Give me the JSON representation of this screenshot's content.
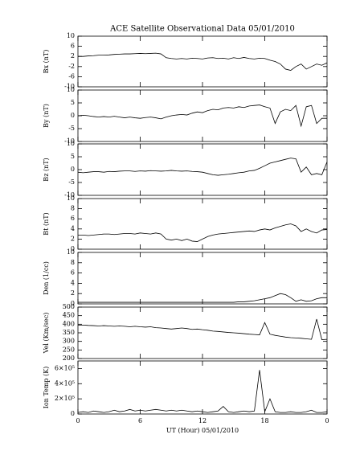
{
  "chart_data": [
    {
      "type": "line",
      "title": "ACE Satellite Observational Data  05/01/2010",
      "ylabel": "Bx (nT)",
      "color": "#000000",
      "xlim": [
        0,
        24
      ],
      "ylim": [
        -10,
        10
      ],
      "yticks": [
        -10,
        -6,
        -2,
        2,
        6,
        10
      ],
      "x": [
        0,
        0.5,
        1,
        1.5,
        2,
        2.5,
        3,
        3.5,
        4,
        4.5,
        5,
        5.5,
        6,
        6.5,
        7,
        7.5,
        8,
        8.5,
        9,
        9.5,
        10,
        10.5,
        11,
        11.5,
        12,
        12.5,
        13,
        13.5,
        14,
        14.5,
        15,
        15.5,
        16,
        16.5,
        17,
        17.5,
        18,
        18.5,
        19,
        19.5,
        20,
        20.5,
        21,
        21.5,
        22,
        22.5,
        23,
        23.5,
        24
      ],
      "values": [
        2,
        2,
        2.2,
        2.3,
        2.5,
        2.5,
        2.6,
        2.8,
        2.9,
        3,
        3,
        3.1,
        3.2,
        3.1,
        3.2,
        3.3,
        3,
        1.5,
        1.2,
        1,
        1.2,
        1,
        1.3,
        1.2,
        1,
        1.4,
        1.5,
        1.2,
        1.3,
        1,
        1.5,
        1.2,
        1.6,
        1.2,
        1,
        1.3,
        1.2,
        0.5,
        0,
        -1,
        -3,
        -3.5,
        -2,
        -1,
        -3,
        -2,
        -1,
        -1.5,
        -0.5
      ]
    },
    {
      "type": "line",
      "ylabel": "By (nT)",
      "color": "#000000",
      "xlim": [
        0,
        24
      ],
      "ylim": [
        -10,
        10
      ],
      "yticks": [
        -10,
        -5,
        0,
        5,
        10
      ],
      "x": [
        0,
        0.5,
        1,
        1.5,
        2,
        2.5,
        3,
        3.5,
        4,
        4.5,
        5,
        5.5,
        6,
        6.5,
        7,
        7.5,
        8,
        8.5,
        9,
        9.5,
        10,
        10.5,
        11,
        11.5,
        12,
        12.5,
        13,
        13.5,
        14,
        14.5,
        15,
        15.5,
        16,
        16.5,
        17,
        17.5,
        18,
        18.5,
        19,
        19.5,
        20,
        20.5,
        21,
        21.5,
        22,
        22.5,
        23,
        23.5,
        24
      ],
      "values": [
        0,
        0.2,
        0,
        -0.3,
        -0.5,
        -0.3,
        -0.5,
        -0.2,
        -0.5,
        -0.8,
        -0.5,
        -0.8,
        -1,
        -0.7,
        -0.5,
        -0.8,
        -1.2,
        -0.5,
        0,
        0.3,
        0.5,
        0.3,
        1,
        1.5,
        1.2,
        2,
        2.5,
        2.3,
        3,
        3.2,
        3,
        3.5,
        3.2,
        3.8,
        4,
        4.2,
        3.5,
        3,
        -3,
        1.5,
        2.5,
        2,
        4,
        -4,
        3.5,
        4,
        -3,
        -1,
        -1
      ]
    },
    {
      "type": "line",
      "ylabel": "Bz (nT)",
      "color": "#000000",
      "xlim": [
        0,
        24
      ],
      "ylim": [
        -10,
        10
      ],
      "yticks": [
        -10,
        -5,
        0,
        5,
        10
      ],
      "x": [
        0,
        0.5,
        1,
        1.5,
        2,
        2.5,
        3,
        3.5,
        4,
        4.5,
        5,
        5.5,
        6,
        6.5,
        7,
        7.5,
        8,
        8.5,
        9,
        9.5,
        10,
        10.5,
        11,
        11.5,
        12,
        12.5,
        13,
        13.5,
        14,
        14.5,
        15,
        15.5,
        16,
        16.5,
        17,
        17.5,
        18,
        18.5,
        19,
        19.5,
        20,
        20.5,
        21,
        21.5,
        22,
        22.5,
        23,
        23.5,
        24
      ],
      "values": [
        -1,
        -1.2,
        -1,
        -0.8,
        -0.8,
        -1,
        -0.7,
        -0.8,
        -0.6,
        -0.5,
        -0.5,
        -0.7,
        -0.5,
        -0.6,
        -0.4,
        -0.5,
        -0.6,
        -0.5,
        -0.3,
        -0.5,
        -0.6,
        -0.5,
        -0.7,
        -0.8,
        -1,
        -1.5,
        -2,
        -2.2,
        -2,
        -1.8,
        -1.5,
        -1.2,
        -1,
        -0.5,
        -0.3,
        0.5,
        1.5,
        2.5,
        3,
        3.5,
        4,
        4.5,
        4.2,
        -1,
        1,
        -2,
        -1.5,
        -2,
        3
      ]
    },
    {
      "type": "line",
      "ylabel": "Bt (nT)",
      "color": "#000000",
      "xlim": [
        0,
        24
      ],
      "ylim": [
        0,
        10
      ],
      "yticks": [
        0,
        2,
        4,
        6,
        8,
        10
      ],
      "x": [
        0,
        0.5,
        1,
        1.5,
        2,
        2.5,
        3,
        3.5,
        4,
        4.5,
        5,
        5.5,
        6,
        6.5,
        7,
        7.5,
        8,
        8.5,
        9,
        9.5,
        10,
        10.5,
        11,
        11.5,
        12,
        12.5,
        13,
        13.5,
        14,
        14.5,
        15,
        15.5,
        16,
        16.5,
        17,
        17.5,
        18,
        18.5,
        19,
        19.5,
        20,
        20.5,
        21,
        21.5,
        22,
        22.5,
        23,
        23.5,
        24
      ],
      "values": [
        2.8,
        2.8,
        2.7,
        2.8,
        2.9,
        3,
        3,
        2.9,
        3,
        3.1,
        3.1,
        3,
        3.2,
        3.1,
        3,
        3.2,
        3,
        2,
        1.8,
        2,
        1.7,
        2,
        1.6,
        1.5,
        2,
        2.5,
        2.8,
        3,
        3.1,
        3.2,
        3.3,
        3.4,
        3.5,
        3.6,
        3.5,
        3.8,
        4,
        3.8,
        4.2,
        4.5,
        4.8,
        5,
        4.6,
        3.5,
        4,
        3.5,
        3.2,
        3.8,
        3.9
      ]
    },
    {
      "type": "line",
      "ylabel": "Den (1/cc)",
      "color": "#000000",
      "xlim": [
        0,
        24
      ],
      "ylim": [
        0,
        10
      ],
      "yticks": [
        0,
        2,
        4,
        6,
        8,
        10
      ],
      "x": [
        0,
        0.5,
        1,
        1.5,
        2,
        2.5,
        3,
        3.5,
        4,
        4.5,
        5,
        5.5,
        6,
        6.5,
        7,
        7.5,
        8,
        8.5,
        9,
        9.5,
        10,
        10.5,
        11,
        11.5,
        12,
        12.5,
        13,
        13.5,
        14,
        14.5,
        15,
        15.5,
        16,
        16.5,
        17,
        17.5,
        18,
        18.5,
        19,
        19.5,
        20,
        20.5,
        21,
        21.5,
        22,
        22.5,
        23,
        23.5,
        24
      ],
      "values": [
        0.3,
        0.3,
        0.3,
        0.3,
        0.3,
        0.3,
        0.3,
        0.3,
        0.3,
        0.3,
        0.3,
        0.3,
        0.3,
        0.3,
        0.3,
        0.3,
        0.3,
        0.3,
        0.3,
        0.3,
        0.3,
        0.3,
        0.3,
        0.3,
        0.3,
        0.3,
        0.3,
        0.3,
        0.3,
        0.3,
        0.3,
        0.4,
        0.4,
        0.5,
        0.6,
        0.8,
        1,
        1.2,
        1.6,
        2,
        1.8,
        1.2,
        0.5,
        0.8,
        0.5,
        0.6,
        1,
        1.2,
        1.2
      ]
    },
    {
      "type": "line",
      "ylabel": "Vel (Km/sec)",
      "color": "#000000",
      "xlim": [
        0,
        24
      ],
      "ylim": [
        200,
        500
      ],
      "yticks": [
        200,
        250,
        300,
        350,
        400,
        450,
        500
      ],
      "x": [
        0,
        0.5,
        1,
        1.5,
        2,
        2.5,
        3,
        3.5,
        4,
        4.5,
        5,
        5.5,
        6,
        6.5,
        7,
        7.5,
        8,
        8.5,
        9,
        9.5,
        10,
        10.5,
        11,
        11.5,
        12,
        12.5,
        13,
        13.5,
        14,
        14.5,
        15,
        15.5,
        16,
        16.5,
        17,
        17.5,
        18,
        18.5,
        19,
        19.5,
        20,
        20.5,
        21,
        21.5,
        22,
        22.5,
        23,
        23.5,
        24
      ],
      "values": [
        395,
        395,
        393,
        392,
        390,
        392,
        390,
        388,
        390,
        388,
        385,
        388,
        385,
        383,
        385,
        380,
        378,
        375,
        372,
        375,
        378,
        375,
        370,
        372,
        368,
        365,
        360,
        358,
        355,
        352,
        350,
        348,
        345,
        342,
        340,
        338,
        410,
        342,
        335,
        330,
        325,
        322,
        320,
        318,
        315,
        312,
        430,
        310,
        312
      ]
    },
    {
      "type": "line",
      "ylabel": "Ion Temp (K)",
      "xlabel": "UT (Hour)  05/01/2010",
      "color": "#000000",
      "xlim": [
        0,
        24
      ],
      "ylim": [
        0,
        700000
      ],
      "yticks": [
        0,
        {
          "value": 200000,
          "label": "2×10⁵"
        },
        {
          "value": 400000,
          "label": "4×10⁵"
        },
        {
          "value": 600000,
          "label": "6×10⁵"
        }
      ],
      "xticks": [
        0,
        6,
        12,
        18,
        {
          "value": 24,
          "label": "0"
        }
      ],
      "x": [
        0,
        0.5,
        1,
        1.5,
        2,
        2.5,
        3,
        3.5,
        4,
        4.5,
        5,
        5.5,
        6,
        6.5,
        7,
        7.5,
        8,
        8.5,
        9,
        9.5,
        10,
        10.5,
        11,
        11.5,
        12,
        12.5,
        13,
        13.5,
        14,
        14.5,
        15,
        15.5,
        16,
        16.5,
        17,
        17.5,
        18,
        18.5,
        19,
        19.5,
        20,
        20.5,
        21,
        21.5,
        22,
        22.5,
        23,
        23.5,
        24
      ],
      "values": [
        20000,
        30000,
        20000,
        40000,
        30000,
        20000,
        30000,
        50000,
        30000,
        40000,
        60000,
        40000,
        50000,
        40000,
        50000,
        60000,
        50000,
        40000,
        50000,
        40000,
        50000,
        40000,
        30000,
        40000,
        30000,
        20000,
        30000,
        40000,
        100000,
        30000,
        20000,
        30000,
        40000,
        30000,
        40000,
        580000,
        30000,
        200000,
        30000,
        20000,
        20000,
        30000,
        20000,
        20000,
        30000,
        50000,
        20000,
        20000,
        30000
      ]
    }
  ]
}
